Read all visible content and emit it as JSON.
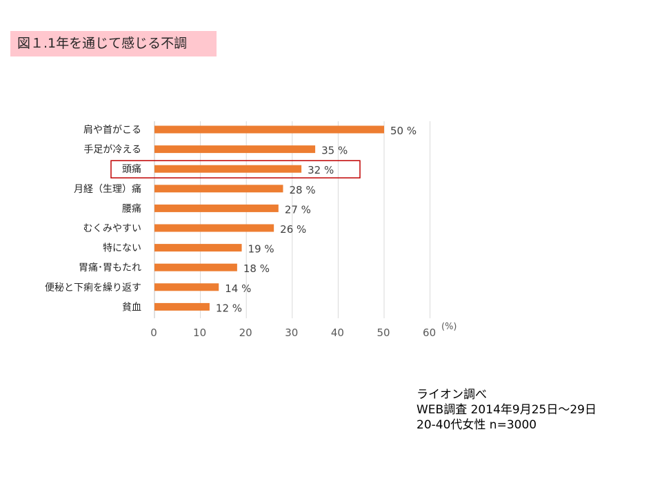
{
  "figure_title": "図１.1年を通じて感じる不調",
  "chart_data": {
    "type": "bar",
    "orientation": "horizontal",
    "categories": [
      "肩や首がこる",
      "手足が冷える",
      "頭痛",
      "月経（生理）痛",
      "腰痛",
      "むくみやすい",
      "特にない",
      "胃痛･胃もたれ",
      "便秘と下痢を繰り返す",
      "貧血"
    ],
    "values": [
      50,
      35,
      32,
      28,
      27,
      26,
      19,
      18,
      14,
      12
    ],
    "value_labels": [
      "50 %",
      "35 %",
      "32 %",
      "28 %",
      "27 %",
      "26 %",
      "19 %",
      "18 %",
      "14 %",
      "12 %"
    ],
    "x_ticks": [
      "0",
      "10",
      "20",
      "30",
      "40",
      "50",
      "60"
    ],
    "xlim": [
      0,
      60
    ],
    "x_unit": "(%)",
    "grid": true,
    "highlighted_category": "頭痛",
    "colors": {
      "bar": "#ed7d31",
      "grid": "#d9d9d9",
      "highlight_box": "#c00000"
    }
  },
  "notes": {
    "source": "ライオン調べ",
    "survey": "WEB調査  2014年9月25日～29日",
    "sample": "20-40代女性  n=3000"
  }
}
